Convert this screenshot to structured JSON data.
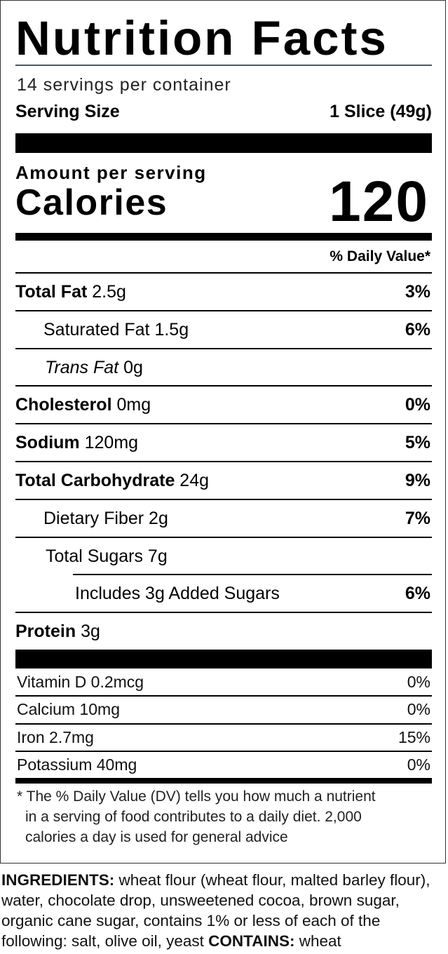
{
  "title": "Nutrition Facts",
  "servings_per_container": "14 servings per container",
  "serving_size": {
    "label": "Serving Size",
    "value": "1 Slice (49g)"
  },
  "amount_per_serving": "Amount per serving",
  "calories": {
    "label": "Calories",
    "value": "120"
  },
  "dv_header": "% Daily Value*",
  "nutrients": [
    {
      "name": "Total Fat",
      "amount": "2.5g",
      "dv": "3%"
    },
    {
      "name": "Saturated Fat",
      "amount": "1.5g",
      "dv": "6%"
    },
    {
      "name": "Trans Fat",
      "amount": "0g",
      "dv": ""
    },
    {
      "name": "Cholesterol",
      "amount": "0mg",
      "dv": "0%"
    },
    {
      "name": "Sodium",
      "amount": "120mg",
      "dv": "5%"
    },
    {
      "name": "Total Carbohydrate",
      "amount": "24g",
      "dv": "9%"
    },
    {
      "name": "Dietary Fiber",
      "amount": "2g",
      "dv": "7%"
    },
    {
      "name": "Total Sugars",
      "amount": "7g",
      "dv": ""
    },
    {
      "name": "Includes 3g Added Sugars",
      "amount": "",
      "dv": "6%"
    },
    {
      "name": "Protein",
      "amount": "3g",
      "dv": ""
    }
  ],
  "vitamins": [
    {
      "name": "Vitamin D 0.2mcg",
      "dv": "0%"
    },
    {
      "name": "Calcium 10mg",
      "dv": "0%"
    },
    {
      "name": "Iron 2.7mg",
      "dv": "15%"
    },
    {
      "name": "Potassium 40mg",
      "dv": "0%"
    }
  ],
  "footnote": {
    "line1": "* The % Daily Value (DV) tells you how much a nutrient",
    "line2": "in a serving of food contributes to a daily diet. 2,000",
    "line3": "calories a day is used for general advice"
  },
  "ingredients": {
    "label": "INGREDIENTS:",
    "text": " wheat flour (wheat flour, malted barley flour), water, chocolate drop, unsweetened cocoa, brown sugar, organic cane sugar, contains 1% or less of each of the following: salt, olive oil, yeast ",
    "contains_label": "CONTAINS:",
    "contains_text": " wheat"
  }
}
